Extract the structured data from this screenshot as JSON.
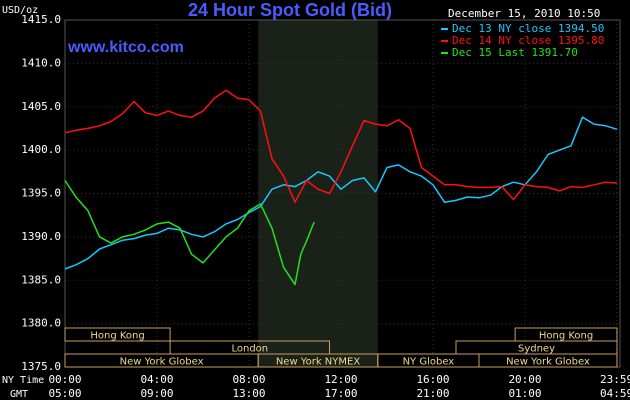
{
  "chart_data": {
    "type": "line",
    "title": "24 Hour Spot Gold (Bid)",
    "subtitle": "December 15, 2010 10:50",
    "source": "www.kitco.com",
    "y_label": "USD/oz",
    "x_label": "NY Time",
    "x2_label": "GMT",
    "xlim": [
      0,
      24
    ],
    "ylim": [
      1375,
      1415
    ],
    "yticks": [
      {
        "value": 1375,
        "label": "1375.0"
      },
      {
        "value": 1380,
        "label": "1380.0"
      },
      {
        "value": 1385,
        "label": "1385.0"
      },
      {
        "value": 1390,
        "label": "1390.0"
      },
      {
        "value": 1395,
        "label": "1395.0"
      },
      {
        "value": 1400,
        "label": "1400.0"
      },
      {
        "value": 1405,
        "label": "1405.0"
      },
      {
        "value": 1410,
        "label": "1410.0"
      },
      {
        "value": 1415,
        "label": "1415.0"
      }
    ],
    "xticks": [
      {
        "value": 0,
        "label": "00:00"
      },
      {
        "value": 4,
        "label": "04:00"
      },
      {
        "value": 8,
        "label": "08:00"
      },
      {
        "value": 12,
        "label": "12:00"
      },
      {
        "value": 16,
        "label": "16:00"
      },
      {
        "value": 20,
        "label": "20:00"
      },
      {
        "value": 23.983,
        "label": "23:59"
      }
    ],
    "xtick_labels_gmt": [
      "05:00",
      "09:00",
      "13:00",
      "17:00",
      "21:00",
      "01:00",
      "04:59"
    ],
    "grid": true,
    "legend": "top-right",
    "series": [
      {
        "name": "Dec 13 NY close 1394.50",
        "color": "#19c6ff",
        "x": [
          0,
          0.5,
          1,
          1.5,
          2,
          2.5,
          3,
          3.5,
          4,
          4.5,
          5,
          5.5,
          6,
          6.5,
          7,
          7.5,
          8,
          8.5,
          9,
          9.5,
          10,
          10.5,
          11,
          11.5,
          12,
          12.5,
          13,
          13.5,
          14,
          14.5,
          15,
          15.5,
          16,
          16.5,
          17,
          17.5,
          18,
          18.5,
          19,
          19.5,
          20,
          20.5,
          21,
          21.5,
          22,
          22.5,
          23,
          23.5,
          24
        ],
        "values": [
          1386.3,
          1386.8,
          1387.5,
          1388.6,
          1389.1,
          1389.6,
          1389.8,
          1390.2,
          1390.4,
          1391.0,
          1390.8,
          1390.3,
          1390.0,
          1390.6,
          1391.5,
          1392.0,
          1392.8,
          1393.5,
          1395.5,
          1396.0,
          1395.8,
          1396.5,
          1397.5,
          1397.0,
          1395.5,
          1396.5,
          1396.8,
          1395.2,
          1398.0,
          1398.3,
          1397.5,
          1397.0,
          1396.0,
          1394.0,
          1394.2,
          1394.6,
          1394.5,
          1394.8,
          1395.8,
          1396.3,
          1396.0,
          1397.5,
          1399.5,
          1400.0,
          1400.5,
          1403.8,
          1403.0,
          1402.8,
          1402.4
        ]
      },
      {
        "name": "Dec 14 NY close 1395.80",
        "color": "#ff1010",
        "x": [
          0,
          0.5,
          1,
          1.5,
          2,
          2.5,
          3,
          3.5,
          4,
          4.5,
          5,
          5.5,
          6,
          6.5,
          7,
          7.5,
          8,
          8.5,
          9,
          9.5,
          10,
          10.5,
          11,
          11.5,
          12,
          12.5,
          13,
          13.5,
          14,
          14.5,
          15,
          15.5,
          16,
          16.5,
          17,
          17.5,
          18,
          18.5,
          19,
          19.5,
          20,
          20.5,
          21,
          21.5,
          22,
          22.5,
          23,
          23.5,
          24
        ],
        "values": [
          1402.0,
          1402.3,
          1402.5,
          1402.8,
          1403.3,
          1404.2,
          1405.6,
          1404.3,
          1404.0,
          1404.5,
          1404.0,
          1403.8,
          1404.5,
          1406.0,
          1406.9,
          1406.0,
          1405.8,
          1404.5,
          1399.0,
          1397.0,
          1394.0,
          1396.5,
          1395.5,
          1395.0,
          1397.5,
          1400.5,
          1403.4,
          1403.0,
          1402.8,
          1403.5,
          1402.5,
          1398.0,
          1397.0,
          1396.0,
          1396.0,
          1395.8,
          1395.7,
          1395.7,
          1395.8,
          1394.3,
          1396.0,
          1395.8,
          1395.7,
          1395.3,
          1395.8,
          1395.7,
          1396.0,
          1396.3,
          1396.2
        ]
      },
      {
        "name": "Dec 15 Last 1391.70",
        "color": "#22e022",
        "x": [
          0,
          0.5,
          1,
          1.5,
          2,
          2.5,
          3,
          3.5,
          4,
          4.5,
          5,
          5.5,
          6,
          6.5,
          7,
          7.5,
          8,
          8.5,
          9,
          9.5,
          10,
          10.25,
          10.5,
          10.83
        ],
        "values": [
          1396.5,
          1394.5,
          1393.0,
          1390.0,
          1389.3,
          1390.0,
          1390.3,
          1390.8,
          1391.5,
          1391.7,
          1391.0,
          1388.0,
          1387.0,
          1388.5,
          1390.0,
          1391.0,
          1393.0,
          1393.8,
          1391.0,
          1386.5,
          1384.5,
          1388.0,
          1389.5,
          1391.7
        ]
      }
    ],
    "session_rows": [
      [
        {
          "label": "Hong Kong",
          "start": 0,
          "end": 4.57
        },
        {
          "label": "Hong Kong",
          "start": 19.57,
          "end": 24
        }
      ],
      [
        {
          "label": "London",
          "start": 4.57,
          "end": 11.5
        },
        {
          "label": "Sydney",
          "start": 17.0,
          "end": 24
        }
      ],
      [
        {
          "label": "New York Globex",
          "start": 0,
          "end": 8.4
        },
        {
          "label": "New York NYMEX",
          "start": 8.4,
          "end": 13.6,
          "highlight": true
        },
        {
          "label": "NY Globex",
          "start": 13.6,
          "end": 18.0
        },
        {
          "label": "New York Globex",
          "start": 18.0,
          "end": 24
        }
      ]
    ]
  }
}
